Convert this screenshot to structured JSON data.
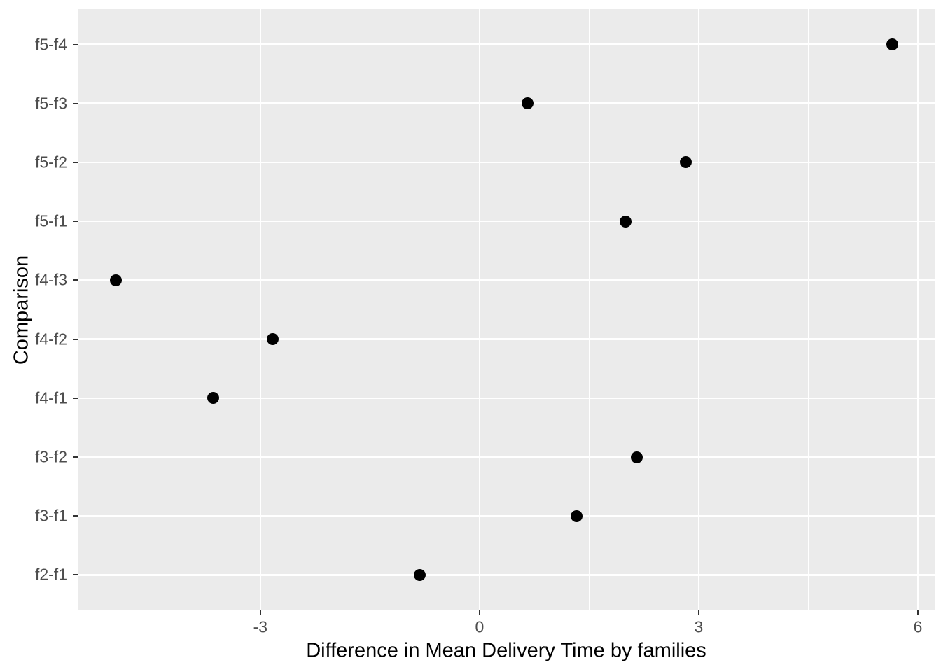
{
  "chart_data": {
    "type": "scatter",
    "title": "",
    "xlabel": "Difference in Mean Delivery Time by families",
    "ylabel": "Comparison",
    "legend_position": "none",
    "categories_top_to_bottom": [
      "f5-f4",
      "f5-f3",
      "f5-f2",
      "f5-f1",
      "f4-f3",
      "f4-f2",
      "f4-f1",
      "f3-f2",
      "f3-f1",
      "f2-f1"
    ],
    "points": [
      {
        "comparison": "f5-f4",
        "difference": 5.65
      },
      {
        "comparison": "f5-f3",
        "difference": 0.66
      },
      {
        "comparison": "f5-f2",
        "difference": 2.82
      },
      {
        "comparison": "f5-f1",
        "difference": 2.0
      },
      {
        "comparison": "f4-f3",
        "difference": -4.98
      },
      {
        "comparison": "f4-f2",
        "difference": -2.83
      },
      {
        "comparison": "f4-f1",
        "difference": -3.65
      },
      {
        "comparison": "f3-f2",
        "difference": 2.15
      },
      {
        "comparison": "f3-f1",
        "difference": 1.33
      },
      {
        "comparison": "f2-f1",
        "difference": -0.82
      }
    ],
    "x_axis": {
      "range": [
        -5.5,
        6.23
      ],
      "major_ticks": [
        {
          "value": -3,
          "label": "-3"
        },
        {
          "value": 0,
          "label": "0"
        },
        {
          "value": 3,
          "label": "3"
        },
        {
          "value": 6,
          "label": "6"
        }
      ],
      "minor_ticks": [
        -4.5,
        -1.5,
        1.5,
        4.5
      ]
    },
    "grid": {
      "horizontal_major_rows": true,
      "vertical_major": true,
      "vertical_minor": true,
      "horizontal_minor": false
    },
    "colors": {
      "page_bg": "#FFFFFF",
      "panel_bg": "#EBEBEB",
      "gridline": "#FFFFFF",
      "point": "#000000",
      "tick_label": "#4D4D4D",
      "tick_mark": "#333333",
      "axis_title": "#000000"
    }
  }
}
